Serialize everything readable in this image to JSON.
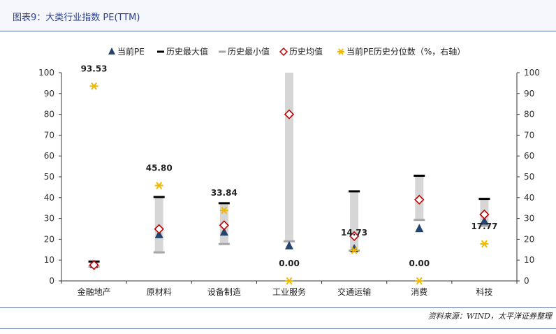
{
  "title": "图表9：大类行业指数 PE(TTM)",
  "source": "资料来源：WIND，太平洋证券整理",
  "chart_data": {
    "type": "range-dot",
    "categories": [
      "金融地产",
      "原材料",
      "设备制造",
      "工业服务",
      "交通运输",
      "消费",
      "科技"
    ],
    "series": [
      {
        "name": "当前PE",
        "marker": "triangle",
        "color": "#24466e",
        "values": [
          7.9,
          22.2,
          23.4,
          16.8,
          15.4,
          25.1,
          28.7
        ]
      },
      {
        "name": "历史最大值",
        "marker": "bar-black",
        "color": "#000000",
        "values": [
          9.3,
          40.3,
          37.3,
          102,
          43.0,
          50.5,
          39.4
        ]
      },
      {
        "name": "历史最小值",
        "marker": "bar-gray",
        "color": "#a6a6a6",
        "values": [
          6.9,
          13.7,
          17.7,
          19.0,
          14.5,
          29.3,
          26.5
        ]
      },
      {
        "name": "历史均值",
        "marker": "diamond",
        "color": "#c00000",
        "values": [
          7.6,
          24.9,
          26.7,
          80.0,
          21.5,
          39.0,
          31.9
        ]
      },
      {
        "name": "当前PE历史分位数（%，右轴）",
        "marker": "asterisk",
        "color": "#f2b800",
        "axis": "right",
        "values": [
          93.53,
          45.8,
          33.84,
          0.0,
          14.73,
          0.0,
          17.77
        ]
      }
    ],
    "percentile_labels": [
      "93.53",
      "45.80",
      "33.84",
      "0.00",
      "14.73",
      "0.00",
      "17.77"
    ],
    "left_axis": {
      "ylim": [
        0,
        100
      ],
      "ticks": [
        "0",
        "10",
        "20",
        "30",
        "40",
        "50",
        "60",
        "70",
        "80",
        "90",
        "100"
      ]
    },
    "right_axis": {
      "ylim": [
        0,
        100
      ],
      "ticks": [
        "0",
        "10",
        "20",
        "30",
        "40",
        "50",
        "60",
        "70",
        "80",
        "90",
        "100"
      ]
    },
    "legend_position": "top",
    "grid": false
  }
}
